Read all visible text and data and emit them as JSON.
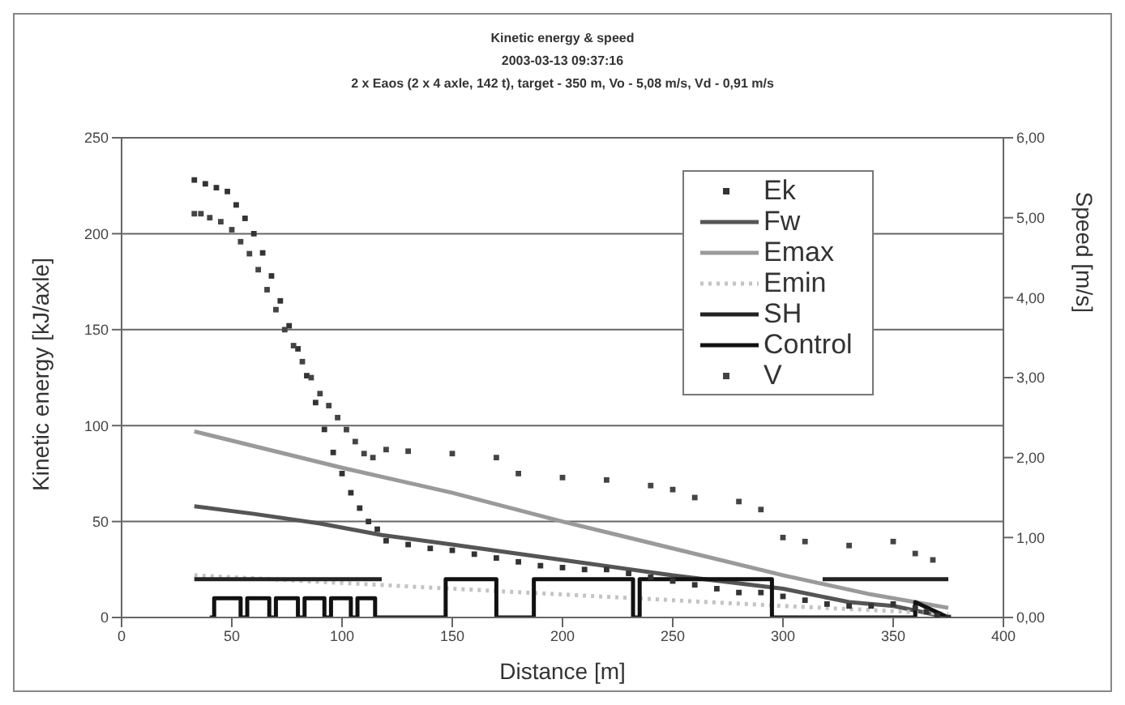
{
  "chart_data": {
    "type": "line",
    "title": "Kinetic energy & speed",
    "subtitle": "2003-03-13 09:37:16\n2 x Eaos (2 x 4 axle, 142 t), target - 350 m, Vo - 5,08 m/s, Vd - 0,91 m/s",
    "xlabel": "Distance [m]",
    "ylabel": "Kinetic energy [kJ/axle]",
    "y2label": "Speed [m/s]",
    "xlim": [
      0,
      400
    ],
    "xticks": [
      0,
      50,
      100,
      150,
      200,
      250,
      300,
      350,
      400
    ],
    "ylim": [
      0,
      250
    ],
    "yticks": [
      0,
      50,
      100,
      150,
      200,
      250
    ],
    "y2lim": [
      0,
      6
    ],
    "y2ticks": [
      {
        "value": 0,
        "label": "0,00"
      },
      {
        "value": 1,
        "label": "1,00"
      },
      {
        "value": 2,
        "label": "2,00"
      },
      {
        "value": 3,
        "label": "3,00"
      },
      {
        "value": 4,
        "label": "4,00"
      },
      {
        "value": 5,
        "label": "5,00"
      },
      {
        "value": 6,
        "label": "6,00"
      }
    ],
    "grid": "y",
    "legend": "top right",
    "line_style": "solid",
    "marker": "none",
    "series": [
      {
        "name": "Ek",
        "type": "scatter",
        "marker": "square",
        "color": "#333333",
        "x": [
          33,
          38,
          43,
          48,
          52,
          56,
          60,
          64,
          68,
          72,
          76,
          80,
          84,
          88,
          92,
          96,
          100,
          104,
          108,
          112,
          116,
          120,
          130,
          140,
          150,
          160,
          170,
          180,
          190,
          200,
          210,
          220,
          230,
          240,
          250,
          260,
          270,
          280,
          290,
          300,
          310,
          320,
          330,
          340,
          350,
          360,
          365,
          370,
          375
        ],
        "values": [
          228,
          226,
          224,
          222,
          215,
          208,
          200,
          190,
          178,
          165,
          152,
          140,
          126,
          112,
          98,
          86,
          75,
          65,
          57,
          50,
          46,
          40,
          38,
          36,
          35,
          33,
          31,
          29,
          27,
          26,
          25,
          25,
          23,
          21,
          19,
          17,
          15,
          13,
          13,
          11,
          9,
          7,
          6,
          6,
          7,
          5,
          3,
          1,
          0
        ]
      },
      {
        "name": "Fw",
        "color": "#555555",
        "x": [
          33,
          60,
          90,
          118,
          150,
          200,
          250,
          300,
          330,
          350,
          375
        ],
        "values": [
          58,
          54,
          49,
          43,
          38,
          30,
          22,
          15,
          8,
          6,
          0
        ]
      },
      {
        "name": "Emax",
        "color": "#9a9a9a",
        "x": [
          33,
          100,
          150,
          200,
          250,
          300,
          340,
          375
        ],
        "values": [
          97,
          78,
          65,
          50,
          36,
          22,
          12,
          5
        ]
      },
      {
        "name": "Emin",
        "color": "#c4c4c4",
        "line_style": "dotted",
        "x": [
          33,
          100,
          150,
          200,
          250,
          300,
          375
        ],
        "values": [
          22,
          18,
          15,
          12,
          9,
          6,
          2
        ]
      },
      {
        "name": "SH",
        "color": "#222222",
        "x": [
          33,
          118
        ],
        "values": [
          20,
          20
        ]
      },
      {
        "color": "#222222",
        "x": [
          318,
          375
        ],
        "values": [
          20,
          20
        ]
      },
      {
        "name": "Control",
        "color": "#111111",
        "x": [
          40,
          42,
          42,
          54,
          54,
          57,
          57,
          67,
          67,
          70,
          70,
          80,
          80,
          83,
          83,
          92,
          92,
          95,
          95,
          104,
          104,
          107,
          107,
          115,
          115,
          147,
          147,
          170,
          170,
          187,
          187,
          232,
          232,
          235,
          235,
          295,
          295,
          360,
          360,
          375
        ],
        "values": [
          0,
          0,
          10,
          10,
          0,
          0,
          10,
          10,
          0,
          0,
          10,
          10,
          0,
          0,
          10,
          10,
          0,
          0,
          10,
          10,
          0,
          0,
          10,
          10,
          0,
          0,
          20,
          20,
          0,
          0,
          20,
          20,
          0,
          0,
          20,
          20,
          0,
          0,
          8,
          0
        ]
      },
      {
        "name": "V",
        "type": "scatter",
        "marker": "square",
        "axis": "y2",
        "color": "#444444",
        "x": [
          33,
          36,
          40,
          45,
          50,
          54,
          58,
          62,
          66,
          70,
          74,
          78,
          82,
          86,
          90,
          94,
          98,
          102,
          106,
          110,
          114,
          120,
          130,
          150,
          170,
          180,
          200,
          220,
          240,
          250,
          260,
          280,
          290,
          300,
          310,
          330,
          350,
          360,
          368
        ],
        "values": [
          5.05,
          5.05,
          5.0,
          4.95,
          4.85,
          4.7,
          4.55,
          4.35,
          4.1,
          3.85,
          3.6,
          3.4,
          3.2,
          3.0,
          2.8,
          2.65,
          2.5,
          2.35,
          2.2,
          2.05,
          2.0,
          2.1,
          2.08,
          2.05,
          2.0,
          1.8,
          1.75,
          1.72,
          1.65,
          1.6,
          1.5,
          1.45,
          1.35,
          1.0,
          0.95,
          0.9,
          0.95,
          0.8,
          0.72
        ]
      }
    ]
  }
}
